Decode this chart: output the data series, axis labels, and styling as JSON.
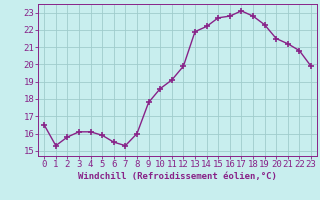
{
  "x": [
    0,
    1,
    2,
    3,
    4,
    5,
    6,
    7,
    8,
    9,
    10,
    11,
    12,
    13,
    14,
    15,
    16,
    17,
    18,
    19,
    20,
    21,
    22,
    23
  ],
  "y": [
    16.5,
    15.3,
    15.8,
    16.1,
    16.1,
    15.9,
    15.5,
    15.3,
    16.0,
    17.8,
    18.6,
    19.1,
    19.9,
    21.9,
    22.2,
    22.7,
    22.8,
    23.1,
    22.8,
    22.3,
    21.5,
    21.2,
    20.8,
    19.9
  ],
  "line_color": "#882288",
  "marker": "+",
  "markersize": 4,
  "linewidth": 1.0,
  "xlabel": "Windchill (Refroidissement éolien,°C)",
  "xlabel_fontsize": 6.5,
  "ylabel_ticks": [
    15,
    16,
    17,
    18,
    19,
    20,
    21,
    22,
    23
  ],
  "xlim": [
    -0.5,
    23.5
  ],
  "ylim": [
    14.7,
    23.5
  ],
  "bg_color": "#c8eeee",
  "grid_color": "#a0cccc",
  "tick_fontsize": 6.5,
  "title": ""
}
